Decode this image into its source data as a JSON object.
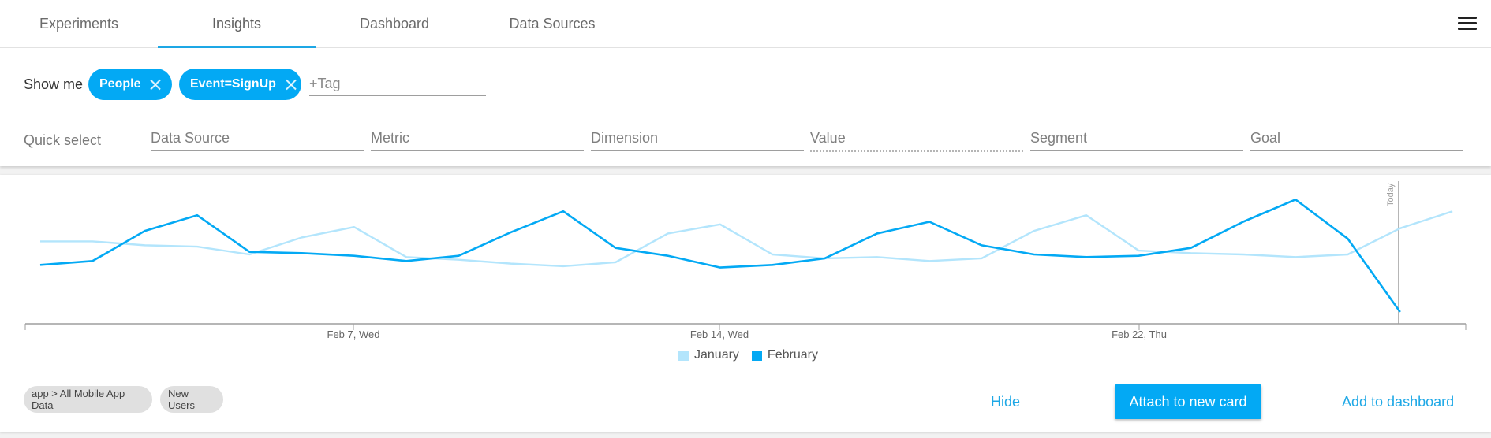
{
  "nav": {
    "tabs": [
      {
        "label": "Experiments",
        "active": false
      },
      {
        "label": "Insights",
        "active": true
      },
      {
        "label": "Dashboard",
        "active": false
      },
      {
        "label": "Data Sources",
        "active": false
      }
    ],
    "menu_icon": "hamburger-menu-icon"
  },
  "filters": {
    "show_me_label": "Show me",
    "chips": [
      "People",
      "Event=SignUp"
    ],
    "tag_placeholder": "+Tag",
    "quick_select_label": "Quick select",
    "quick_select_fields": [
      "Data Source",
      "Metric",
      "Dimension",
      "Value",
      "Segment",
      "Goal"
    ]
  },
  "colors": {
    "accent": "#03a9f4",
    "january": "#b3e5fc",
    "february": "#03a9f4"
  },
  "card": {
    "tags": [
      "app > All Mobile App Data",
      "New Users"
    ],
    "hide_label": "Hide",
    "attach_label": "Attach to new card",
    "add_dashboard_label": "Add to dashboard"
  },
  "chart_data": {
    "type": "line",
    "x_ticks": [
      "Feb 7, Wed",
      "Feb 14, Wed",
      "Feb 22, Thu"
    ],
    "today_label": "Today",
    "grid": false,
    "legend": "bottom-center",
    "series": [
      {
        "name": "January",
        "color": "#b3e5fc",
        "values": [
          60,
          60,
          57,
          56,
          50,
          63,
          71,
          48,
          46,
          43,
          41,
          44,
          66,
          73,
          50,
          47,
          48,
          45,
          47,
          68,
          80,
          53,
          51,
          50,
          48,
          50,
          70,
          83
        ]
      },
      {
        "name": "February",
        "color": "#03a9f4",
        "values": [
          42,
          45,
          68,
          80,
          52,
          51,
          49,
          45,
          49,
          67,
          83,
          55,
          49,
          40,
          42,
          47,
          66,
          75,
          57,
          50,
          48,
          49,
          55,
          75,
          92,
          62,
          6
        ]
      }
    ]
  }
}
